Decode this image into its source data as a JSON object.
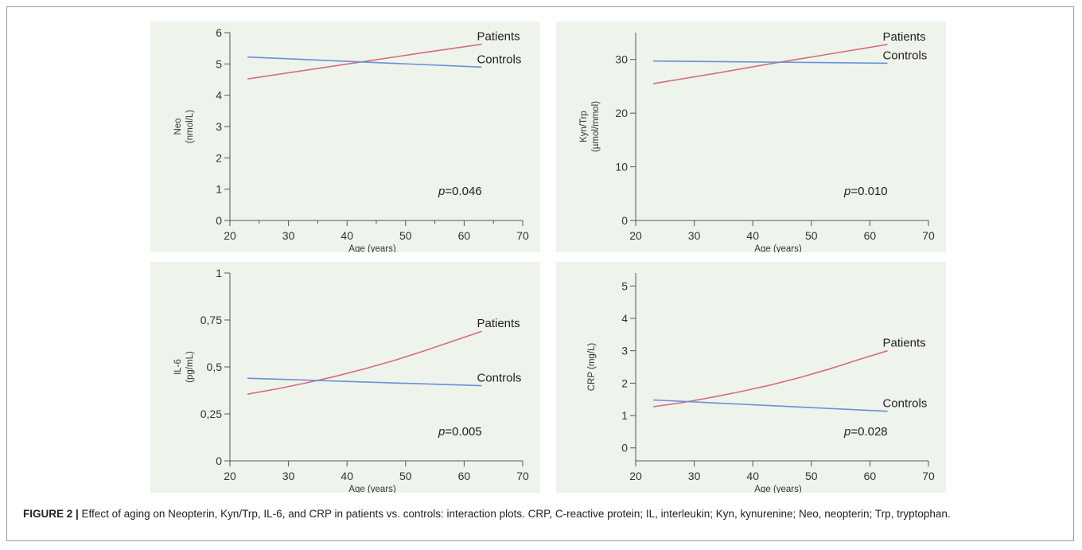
{
  "caption": {
    "label": "FIGURE 2 |",
    "text": " Effect of aging on Neopterin, Kyn/Trp, IL-6, and CRP in patients vs. controls: interaction plots. CRP, C-reactive protein; IL, interleukin; Kyn, kynurenine; Neo, neopterin; Trp, tryptophan."
  },
  "colors": {
    "patients": "#d96b7e",
    "controls": "#6b8fd9",
    "panel_bg": "#eef4ec",
    "axis": "#555555"
  },
  "chart_data": [
    {
      "type": "line",
      "ylabel": [
        "Neo",
        "(nmol/L)"
      ],
      "xlabel": "Age (years)",
      "xlim": [
        20,
        70
      ],
      "ylim": [
        0,
        6
      ],
      "xticks": [
        20,
        30,
        40,
        50,
        60,
        70
      ],
      "xminor": [
        25,
        35,
        45,
        55,
        65
      ],
      "yticks": [
        0,
        1,
        2,
        3,
        4,
        5,
        6
      ],
      "ytick_labels": [
        "0",
        "1",
        "2",
        "3",
        "4",
        "5",
        "6"
      ],
      "series": [
        {
          "name": "Patients",
          "color": "#d96b7e",
          "x": [
            23,
            33,
            43,
            53,
            63
          ],
          "y": [
            4.52,
            4.8,
            5.08,
            5.36,
            5.63
          ]
        },
        {
          "name": "Controls",
          "color": "#6b8fd9",
          "x": [
            23,
            63
          ],
          "y": [
            5.22,
            4.9
          ]
        }
      ],
      "annotation": {
        "prefix": "p",
        "text": "=0.046"
      }
    },
    {
      "type": "line",
      "ylabel": [
        "Kyn/Trp",
        "(µmol/mmol)"
      ],
      "xlabel": "Age (years)",
      "xlim": [
        20,
        70
      ],
      "ylim": [
        0,
        35
      ],
      "xticks": [
        20,
        30,
        40,
        50,
        60,
        70
      ],
      "xminor": [],
      "yticks": [
        0,
        10,
        20,
        30
      ],
      "ytick_labels": [
        "0",
        "10",
        "20",
        "30"
      ],
      "series": [
        {
          "name": "Patients",
          "color": "#d96b7e",
          "x": [
            23,
            33,
            43,
            53,
            63
          ],
          "y": [
            25.5,
            27.3,
            29.2,
            31.0,
            32.8
          ]
        },
        {
          "name": "Controls",
          "color": "#6b8fd9",
          "x": [
            23,
            63
          ],
          "y": [
            29.7,
            29.3
          ]
        }
      ],
      "annotation": {
        "prefix": "p",
        "text": "=0.010"
      }
    },
    {
      "type": "line",
      "ylabel": [
        "IL-6",
        "(pg/mL)"
      ],
      "xlabel": "Age (years)",
      "xlim": [
        20,
        70
      ],
      "ylim": [
        0,
        1
      ],
      "xticks": [
        20,
        30,
        40,
        50,
        60,
        70
      ],
      "xminor": [],
      "yticks": [
        0,
        0.25,
        0.5,
        0.75,
        1
      ],
      "ytick_labels": [
        "0",
        "0,25",
        "0,5",
        "0,75",
        "1"
      ],
      "series": [
        {
          "name": "Patients",
          "color": "#d96b7e",
          "x": [
            23,
            28,
            33,
            38,
            43,
            48,
            53,
            58,
            63
          ],
          "y": [
            0.355,
            0.383,
            0.415,
            0.45,
            0.49,
            0.534,
            0.584,
            0.637,
            0.69
          ]
        },
        {
          "name": "Controls",
          "color": "#6b8fd9",
          "x": [
            23,
            63
          ],
          "y": [
            0.44,
            0.4
          ]
        }
      ],
      "annotation": {
        "prefix": "p",
        "text": "=0.005"
      }
    },
    {
      "type": "line",
      "ylabel": [
        "CRP (mg/L)"
      ],
      "xlabel": "Age (years)",
      "xlim": [
        20,
        70
      ],
      "ylim": [
        -0.4,
        5.4
      ],
      "xticks": [
        20,
        30,
        40,
        50,
        60,
        70
      ],
      "xminor": [],
      "yticks": [
        0,
        1,
        2,
        3,
        4,
        5
      ],
      "ytick_labels": [
        "0",
        "1",
        "2",
        "3",
        "4",
        "5"
      ],
      "series": [
        {
          "name": "Patients",
          "color": "#d96b7e",
          "x": [
            23,
            28,
            33,
            38,
            43,
            48,
            53,
            58,
            63
          ],
          "y": [
            1.27,
            1.4,
            1.56,
            1.74,
            1.94,
            2.17,
            2.43,
            2.72,
            3.0
          ]
        },
        {
          "name": "Controls",
          "color": "#6b8fd9",
          "x": [
            23,
            63
          ],
          "y": [
            1.48,
            1.13
          ]
        }
      ],
      "annotation": {
        "prefix": "p",
        "text": "=0.028"
      }
    }
  ]
}
